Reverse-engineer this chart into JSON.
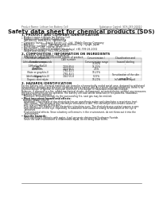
{
  "title": "Safety data sheet for chemical products (SDS)",
  "header_left": "Product Name: Lithium Ion Battery Cell",
  "header_right_line1": "Substance Control: SDS-049-00010",
  "header_right_line2": "Established / Revision: Dec.7,2010",
  "section1_title": "1. PRODUCT AND COMPANY IDENTIFICATION",
  "section1_lines": [
    "• Product name: Lithium Ion Battery Cell",
    "• Product code: Cylindrical-type cell",
    "   INR18650J, INR18650L, INR18650A",
    "• Company name:   Sanyo Electric Co., Ltd.  Mobile Energy Company",
    "• Address:         2001  Kamakura-cho, Sumoto-City, Hyogo, Japan",
    "• Telephone number:  +81-799-26-4111",
    "• Fax number:  +81-799-26-4120",
    "• Emergency telephone number (Weekdays) +81-799-26-2062",
    "   (Night and holiday) +81-799-26-4101"
  ],
  "section2_title": "2. COMPOSITION / INFORMATION ON INGREDIENTS",
  "section2_intro": "• Substance or preparation: Preparation",
  "section2_sub": "• Information about the chemical nature of product:",
  "table_headers": [
    "Chemical component /\nCommon name",
    "CAS number",
    "Concentration /\nConcentration range",
    "Classification and\nhazard labeling"
  ],
  "table_rows": [
    [
      "Lithium oxide compounds\n(LiMnxCoyNizO2)",
      "-",
      "30-60%",
      "-"
    ],
    [
      "Iron",
      "7439-89-6",
      "15-25%",
      "-"
    ],
    [
      "Aluminum",
      "7429-90-5",
      "2-5%",
      "-"
    ],
    [
      "Graphite\n(flake or graphite-I)\n(Artificial graphite-II)",
      "7782-42-5\n7782-42-5",
      "10-25%",
      "-"
    ],
    [
      "Copper",
      "7440-50-8",
      "5-15%",
      "Sensitization of the skin\ngroup No.2"
    ],
    [
      "Organic electrolyte",
      "-",
      "10-20%",
      "Inflammable liquid"
    ]
  ],
  "section3_title": "3. HAZARDS IDENTIFICATION",
  "section3_lines": [
    "For the battery cell, chemical materials are stored in a hermetically sealed metal case, designed to withstand",
    "temperature changes and pressure variations during normal use. As a result, during normal use, there is no",
    "physical danger of ignition or explosion and there is no danger of hazardous materials leakage.",
    "",
    "However, if exposed to a fire, added mechanical shocks, decomposed, or tested electric without any measures,",
    "the gas nozzle vent can be operated. The battery cell case will be breached or fire-patterns, hazardous",
    "materials may be released.",
    "   Moreover, if heated strongly by the surrounding fire, soot gas may be emitted.",
    "",
    "• Most important hazard and effects:",
    "Human health effects:",
    "   Inhalation: The release of the electrolyte has an anesthesia action and stimulates a respiratory tract.",
    "   Skin contact: The release of the electrolyte stimulates a skin. The electrolyte skin contact causes a",
    "   sore and stimulation on the skin.",
    "   Eye contact: The release of the electrolyte stimulates eyes. The electrolyte eye contact causes a sore",
    "   and stimulation on the eye. Especially, a substance that causes a strong inflammation of the eye is",
    "   contained.",
    "",
    "   Environmental effects: Since a battery cell remains in the environment, do not throw out it into the",
    "   environment.",
    "",
    "• Specific hazards:",
    "   If the electrolyte contacts with water, it will generate detrimental hydrogen fluoride.",
    "   Since the seal environment is inflammable liquid, do not bring close to fire."
  ],
  "bg_color": "#ffffff",
  "text_color": "#1a1a1a",
  "line_color": "#aaaaaa"
}
